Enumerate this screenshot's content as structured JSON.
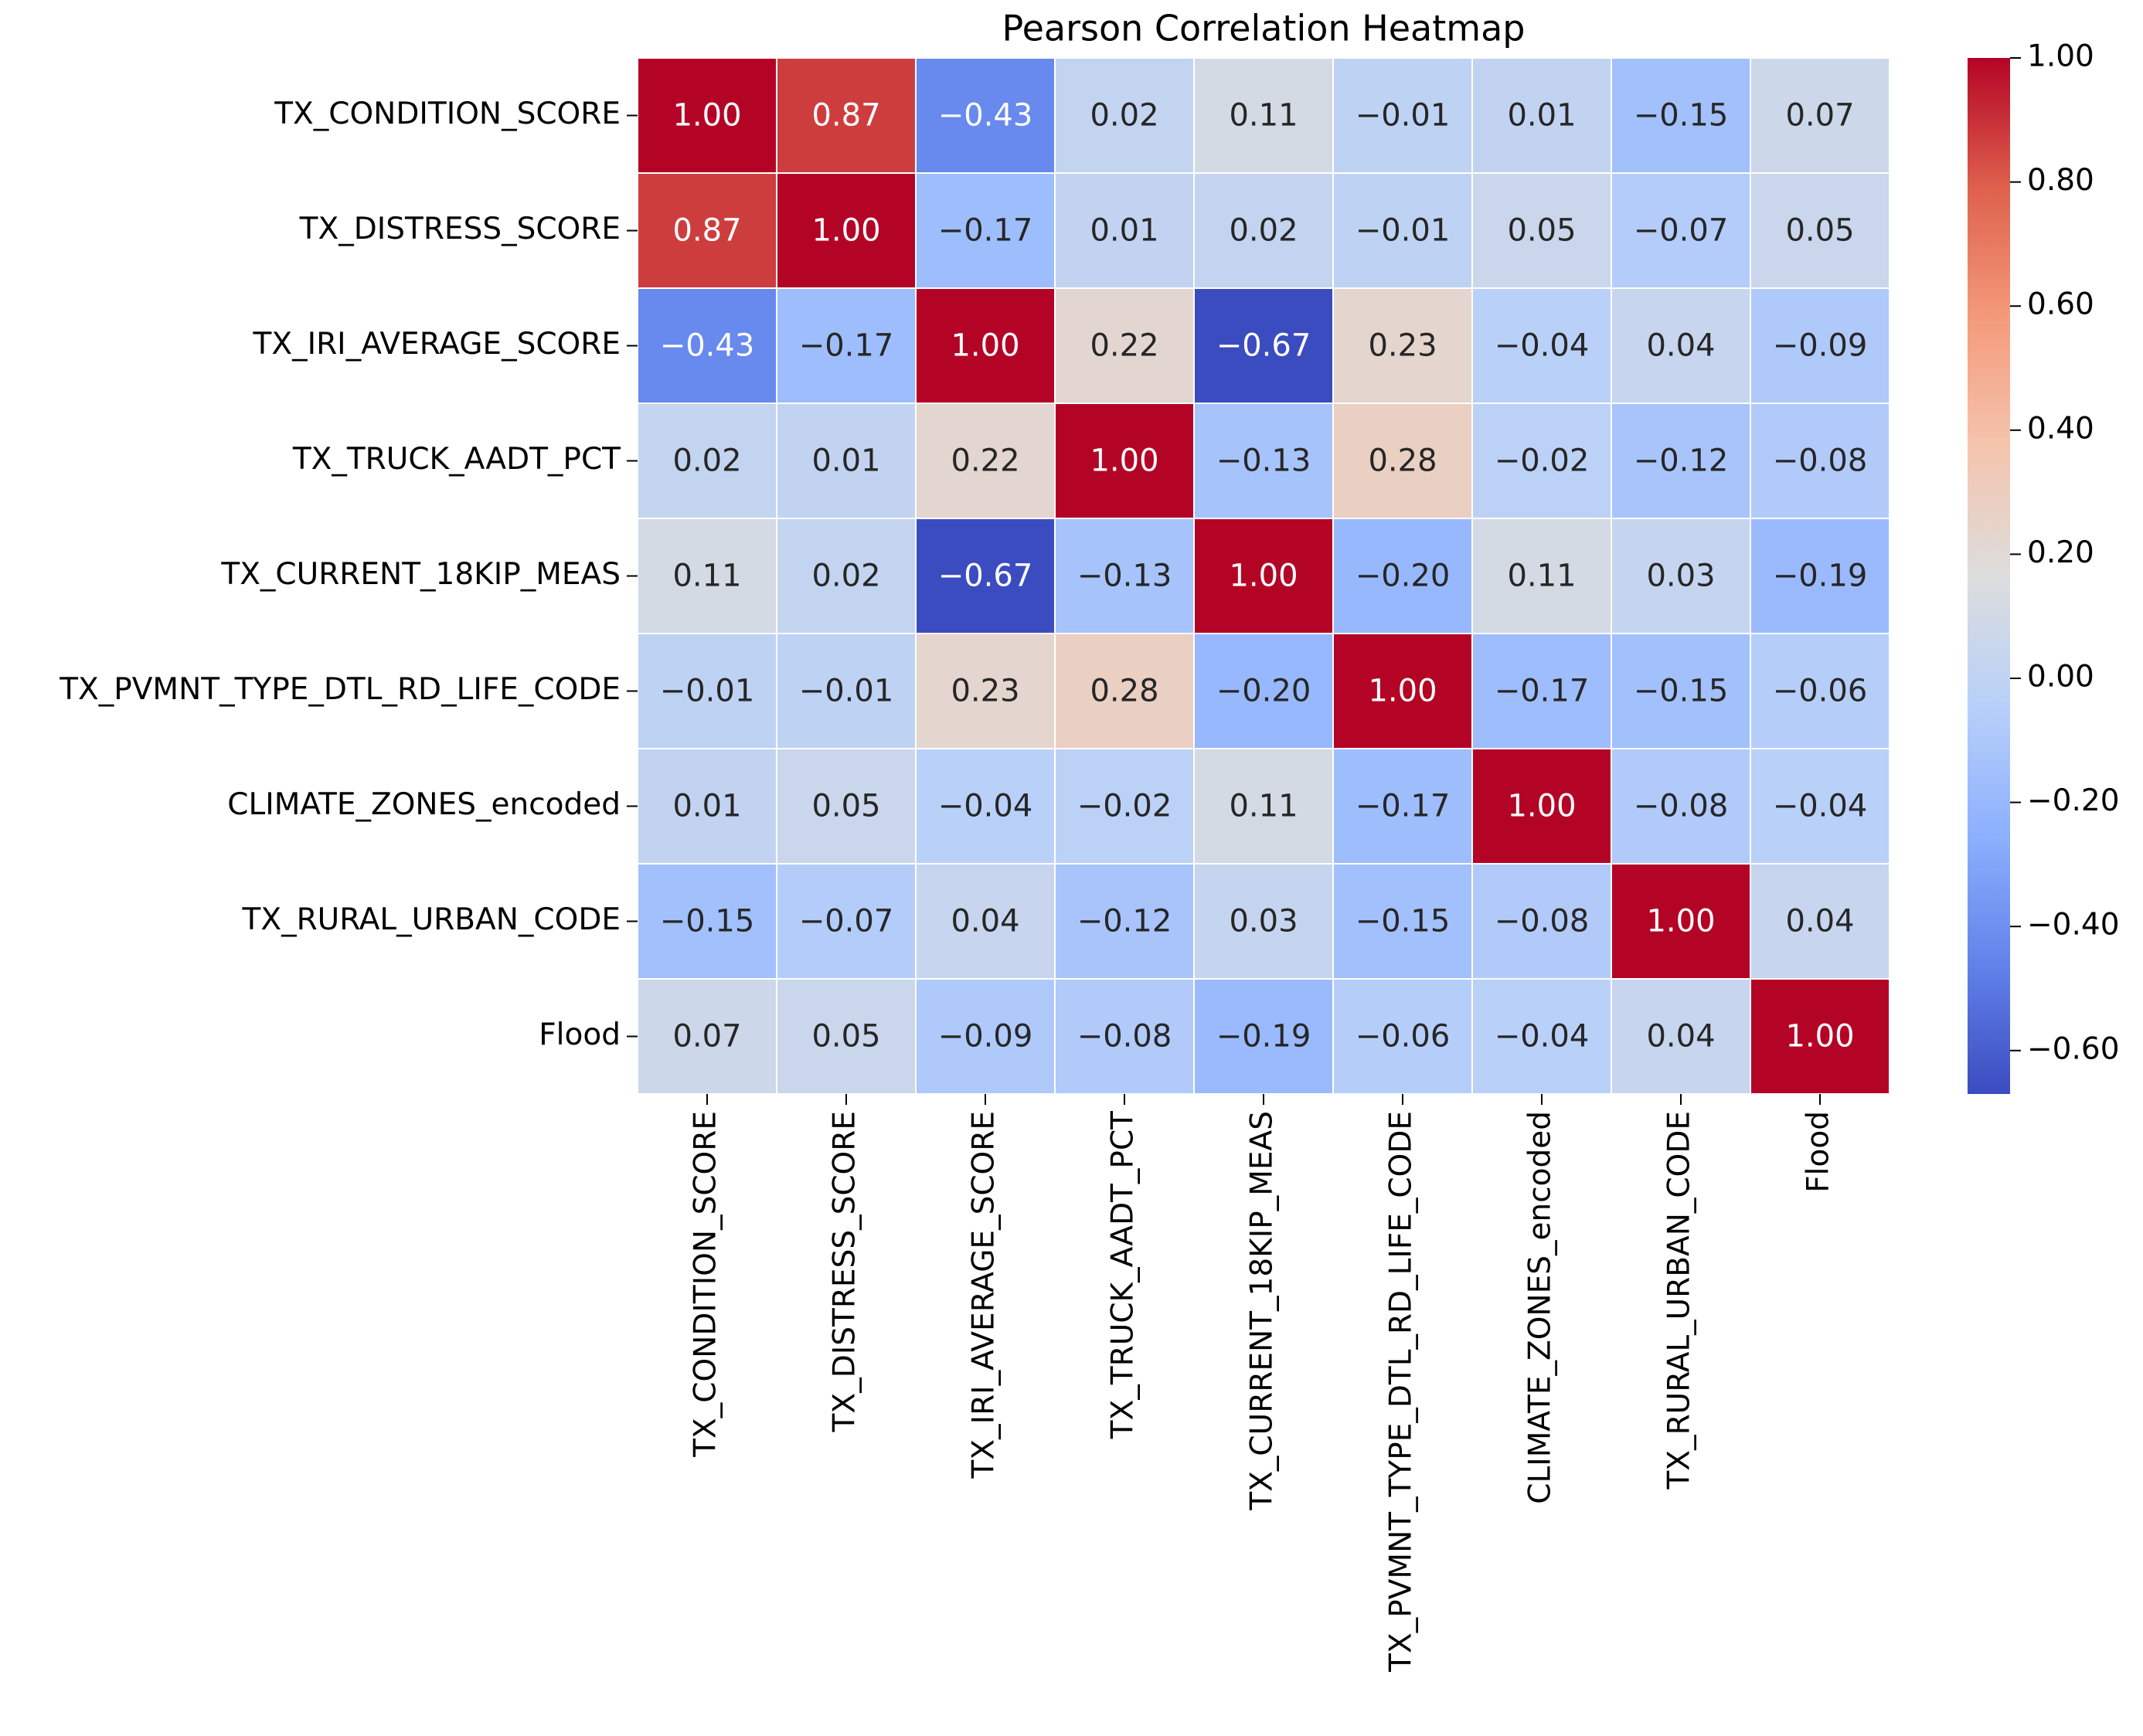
{
  "chart_data": {
    "type": "heatmap",
    "title": "Pearson Correlation Heatmap",
    "x_categories": [
      "TX_CONDITION_SCORE",
      "TX_DISTRESS_SCORE",
      "TX_IRI_AVERAGE_SCORE",
      "TX_TRUCK_AADT_PCT",
      "TX_CURRENT_18KIP_MEAS",
      "TX_PVMNT_TYPE_DTL_RD_LIFE_CODE",
      "CLIMATE_ZONES_encoded",
      "TX_RURAL_URBAN_CODE",
      "Flood"
    ],
    "y_categories": [
      "TX_CONDITION_SCORE",
      "TX_DISTRESS_SCORE",
      "TX_IRI_AVERAGE_SCORE",
      "TX_TRUCK_AADT_PCT",
      "TX_CURRENT_18KIP_MEAS",
      "TX_PVMNT_TYPE_DTL_RD_LIFE_CODE",
      "CLIMATE_ZONES_encoded",
      "TX_RURAL_URBAN_CODE",
      "Flood"
    ],
    "values": [
      [
        1.0,
        0.87,
        -0.43,
        0.02,
        0.11,
        -0.01,
        0.01,
        -0.15,
        0.07
      ],
      [
        0.87,
        1.0,
        -0.17,
        0.01,
        0.02,
        -0.01,
        0.05,
        -0.07,
        0.05
      ],
      [
        -0.43,
        -0.17,
        1.0,
        0.22,
        -0.67,
        0.23,
        -0.04,
        0.04,
        -0.09
      ],
      [
        0.02,
        0.01,
        0.22,
        1.0,
        -0.13,
        0.28,
        -0.02,
        -0.12,
        -0.08
      ],
      [
        0.11,
        0.02,
        -0.67,
        -0.13,
        1.0,
        -0.2,
        0.11,
        0.03,
        -0.19
      ],
      [
        -0.01,
        -0.01,
        0.23,
        0.28,
        -0.2,
        1.0,
        -0.17,
        -0.15,
        -0.06
      ],
      [
        0.01,
        0.05,
        -0.04,
        -0.02,
        0.11,
        -0.17,
        1.0,
        -0.08,
        -0.04
      ],
      [
        -0.15,
        -0.07,
        0.04,
        -0.12,
        0.03,
        -0.15,
        -0.08,
        1.0,
        0.04
      ],
      [
        0.07,
        0.05,
        -0.09,
        -0.08,
        -0.19,
        -0.06,
        -0.04,
        0.04,
        1.0
      ]
    ],
    "value_labels": [
      [
        "1.00",
        "0.87",
        "−0.43",
        "0.02",
        "0.11",
        "−0.01",
        "0.01",
        "−0.15",
        "0.07"
      ],
      [
        "0.87",
        "1.00",
        "−0.17",
        "0.01",
        "0.02",
        "−0.01",
        "0.05",
        "−0.07",
        "0.05"
      ],
      [
        "−0.43",
        "−0.17",
        "1.00",
        "0.22",
        "−0.67",
        "0.23",
        "−0.04",
        "0.04",
        "−0.09"
      ],
      [
        "0.02",
        "0.01",
        "0.22",
        "1.00",
        "−0.13",
        "0.28",
        "−0.02",
        "−0.12",
        "−0.08"
      ],
      [
        "0.11",
        "0.02",
        "−0.67",
        "−0.13",
        "1.00",
        "−0.20",
        "0.11",
        "0.03",
        "−0.19"
      ],
      [
        "−0.01",
        "−0.01",
        "0.23",
        "0.28",
        "−0.20",
        "1.00",
        "−0.17",
        "−0.15",
        "−0.06"
      ],
      [
        "0.01",
        "0.05",
        "−0.04",
        "−0.02",
        "0.11",
        "−0.17",
        "1.00",
        "−0.08",
        "−0.04"
      ],
      [
        "−0.15",
        "−0.07",
        "0.04",
        "−0.12",
        "0.03",
        "−0.15",
        "−0.08",
        "1.00",
        "0.04"
      ],
      [
        "0.07",
        "0.05",
        "−0.09",
        "−0.08",
        "−0.19",
        "−0.06",
        "−0.04",
        "0.04",
        "1.00"
      ]
    ],
    "colormap": "coolwarm",
    "zlim": [
      -0.67,
      1.0
    ],
    "zticks": [
      {
        "value": 1.0,
        "label": "1.00"
      },
      {
        "value": 0.8,
        "label": "0.80"
      },
      {
        "value": 0.6,
        "label": "0.60"
      },
      {
        "value": 0.4,
        "label": "0.40"
      },
      {
        "value": 0.2,
        "label": "0.20"
      },
      {
        "value": 0.0,
        "label": "0.00"
      },
      {
        "value": -0.2,
        "label": "−0.20"
      },
      {
        "value": -0.4,
        "label": "−0.40"
      },
      {
        "value": -0.6,
        "label": "−0.60"
      }
    ]
  }
}
